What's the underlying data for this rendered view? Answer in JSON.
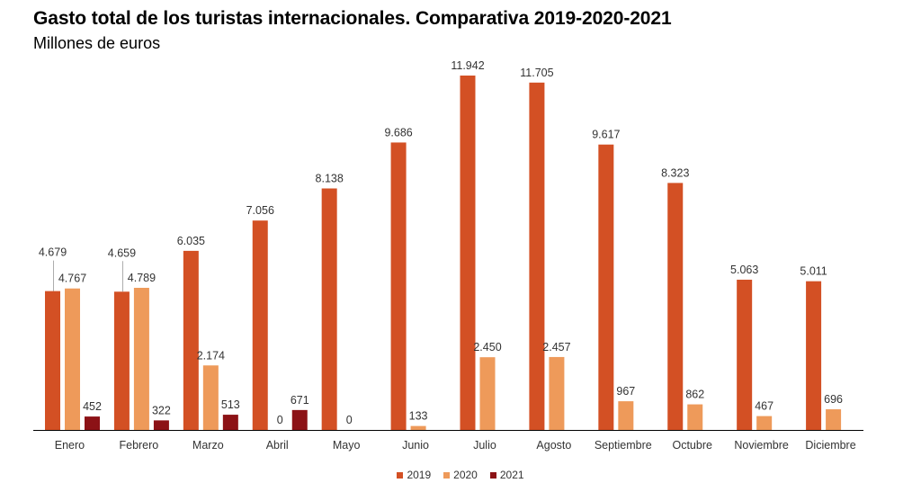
{
  "title": "Gasto total de los turistas internacionales. Comparativa 2019-2020-2021",
  "subtitle": "Millones de euros",
  "colors": {
    "2019": "#d35024",
    "2020": "#ee9a5a",
    "2021": "#8c1216",
    "axis": "#000000",
    "label": "#333333"
  },
  "chart_data": {
    "type": "bar",
    "title": "Gasto total de los turistas internacionales. Comparativa 2019-2020-2021",
    "subtitle": "Millones de euros",
    "xlabel": "",
    "ylabel": "",
    "ylim": [
      0,
      12000
    ],
    "grid": false,
    "legend_position": "bottom",
    "categories": [
      "Enero",
      "Febrero",
      "Marzo",
      "Abril",
      "Mayo",
      "Junio",
      "Julio",
      "Agosto",
      "Septiembre",
      "Octubre",
      "Noviembre",
      "Diciembre"
    ],
    "series": [
      {
        "name": "2019",
        "values": [
          4679,
          4659,
          6035,
          7056,
          8138,
          9686,
          11942,
          11705,
          9617,
          8323,
          5063,
          5011
        ],
        "labels": [
          "4.679",
          "4.659",
          "6.035",
          "7.056",
          "8.138",
          "9.686",
          "11.942",
          "11.705",
          "9.617",
          "8.323",
          "5.063",
          "5.011"
        ]
      },
      {
        "name": "2020",
        "values": [
          4767,
          4789,
          2174,
          0,
          0,
          133,
          2450,
          2457,
          967,
          862,
          467,
          696
        ],
        "labels": [
          "4.767",
          "4.789",
          "2.174",
          "0",
          "0",
          "133",
          "2.450",
          "2.457",
          "967",
          "862",
          "467",
          "696"
        ]
      },
      {
        "name": "2021",
        "values": [
          452,
          322,
          513,
          671,
          null,
          null,
          null,
          null,
          null,
          null,
          null,
          null
        ],
        "labels": [
          "452",
          "322",
          "513",
          "671",
          null,
          null,
          null,
          null,
          null,
          null,
          null,
          null
        ]
      }
    ]
  }
}
